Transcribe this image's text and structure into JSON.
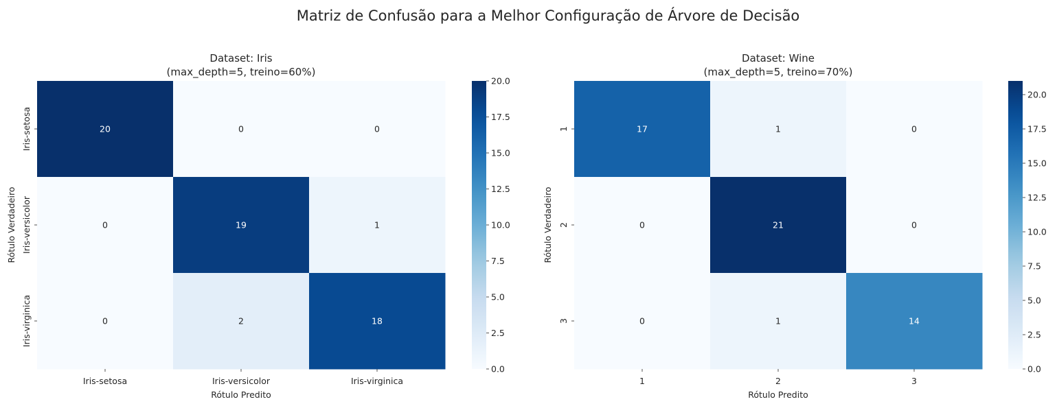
{
  "suptitle": "Matriz de Confusão para a Melhor Configuração de Árvore de Decisão",
  "colors": {
    "cmap_low": "#f7fbff",
    "cmap_high": "#08306b",
    "cmap": "Blues",
    "text_light": "#ffffff",
    "text_dark": "#262626"
  },
  "chart_data": [
    {
      "type": "heatmap",
      "title_line1": "Dataset: Iris",
      "title_line2": "(max_depth=5, treino=60%)",
      "xlabel": "Rótulo Predito",
      "ylabel": "Rótulo Verdadeiro",
      "x_categories": [
        "Iris-setosa",
        "Iris-versicolor",
        "Iris-virginica"
      ],
      "y_categories": [
        "Iris-setosa",
        "Iris-versicolor",
        "Iris-virginica"
      ],
      "matrix": [
        [
          20,
          0,
          0
        ],
        [
          0,
          19,
          1
        ],
        [
          0,
          2,
          18
        ]
      ],
      "vmin": 0,
      "vmax": 20,
      "colorbar_ticks": [
        "0.0",
        "2.5",
        "5.0",
        "7.5",
        "10.0",
        "12.5",
        "15.0",
        "17.5",
        "20.0"
      ]
    },
    {
      "type": "heatmap",
      "title_line1": "Dataset: Wine",
      "title_line2": "(max_depth=5, treino=70%)",
      "xlabel": "Rótulo Predito",
      "ylabel": "Rótulo Verdadeiro",
      "x_categories": [
        "1",
        "2",
        "3"
      ],
      "y_categories": [
        "1",
        "2",
        "3"
      ],
      "matrix": [
        [
          17,
          1,
          0
        ],
        [
          0,
          21,
          0
        ],
        [
          0,
          1,
          14
        ]
      ],
      "vmin": 0,
      "vmax": 21,
      "colorbar_ticks": [
        "0.0",
        "2.5",
        "5.0",
        "7.5",
        "10.0",
        "12.5",
        "15.0",
        "17.5",
        "20.0"
      ]
    }
  ]
}
